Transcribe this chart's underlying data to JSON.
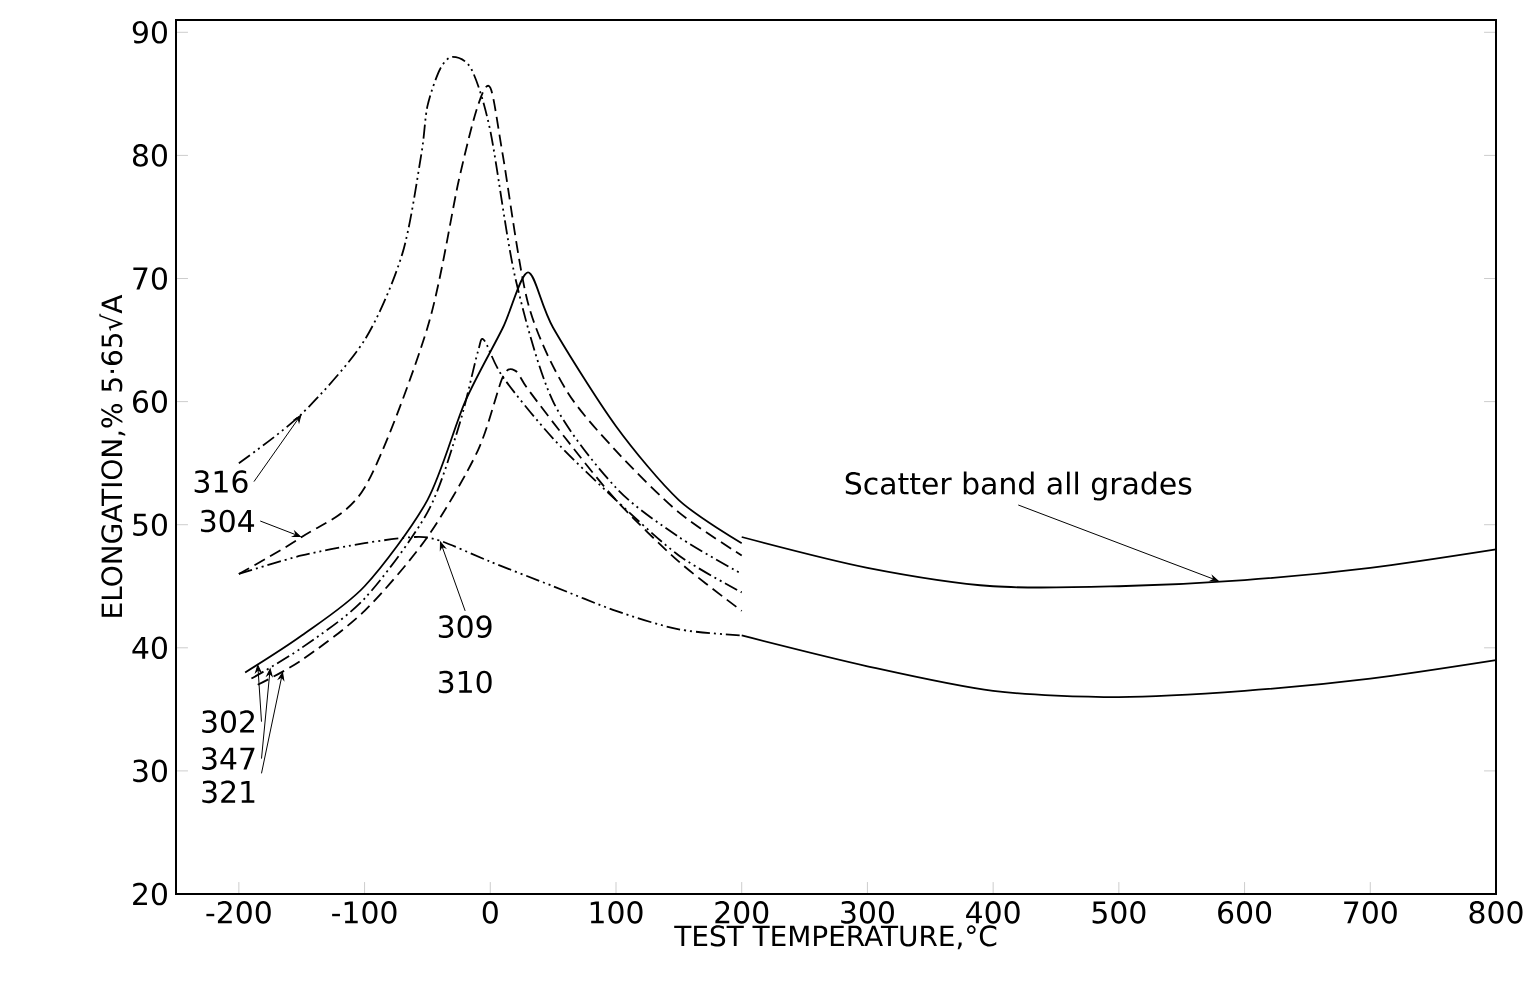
{
  "chart_data": {
    "type": "line",
    "xlabel": "TEST   TEMPERATURE,°C",
    "ylabel": "ELONGATION,% 5·65√A",
    "xlim": [
      -250,
      800
    ],
    "ylim": [
      20,
      91
    ],
    "xticks": [
      -200,
      -100,
      0,
      100,
      200,
      300,
      400,
      500,
      600,
      700,
      800
    ],
    "yticks": [
      20,
      30,
      40,
      50,
      60,
      70,
      80,
      90
    ],
    "marker": "none",
    "series": [
      {
        "color": "#000000",
        "line_style": "dotted",
        "x": [
          -200,
          -150,
          -100,
          -70,
          -55,
          -50,
          -40,
          -30,
          -15,
          0,
          20,
          50,
          100,
          150,
          200
        ],
        "values": [
          55,
          59,
          65,
          72,
          80,
          84,
          87,
          88,
          87,
          82,
          70,
          60,
          53,
          49,
          46
        ]
      },
      {
        "color": "#000000",
        "line_style": "dashed",
        "x": [
          -200,
          -150,
          -100,
          -50,
          -25,
          -10,
          0,
          10,
          30,
          60,
          100,
          150,
          200
        ],
        "values": [
          46,
          49,
          53,
          66,
          78,
          84,
          85.5,
          80,
          68,
          61,
          56,
          51,
          47.5
        ]
      },
      {
        "color": "#000000",
        "line_style": "dotted",
        "x": [
          -200,
          -150,
          -100,
          -60,
          -40,
          0,
          50,
          100,
          150,
          200
        ],
        "values": [
          46,
          47.5,
          48.5,
          49,
          48.7,
          47,
          45,
          43,
          41.5,
          41
        ]
      },
      {
        "color": "#000000",
        "line_style": "solid",
        "x": [
          -195,
          -150,
          -100,
          -50,
          -20,
          10,
          30,
          50,
          100,
          150,
          200
        ],
        "values": [
          38,
          41,
          45,
          52,
          60,
          66,
          70.5,
          66,
          58,
          52,
          48.5
        ]
      },
      {
        "color": "#000000",
        "line_style": "dotted",
        "x": [
          -190,
          -150,
          -100,
          -50,
          -25,
          -10,
          -5,
          10,
          50,
          100,
          150,
          200
        ],
        "values": [
          37.5,
          40,
          44,
          51,
          58,
          64,
          65,
          62,
          57,
          52,
          47.5,
          44.5
        ]
      },
      {
        "color": "#000000",
        "line_style": "dashed",
        "x": [
          -185,
          -150,
          -100,
          -50,
          -10,
          10,
          20,
          30,
          60,
          100,
          150,
          200
        ],
        "values": [
          37,
          39,
          43,
          49,
          56,
          62,
          62.5,
          61,
          57,
          52,
          47,
          43
        ]
      },
      {
        "type": "line",
        "color": "#000000",
        "line_style": "solid",
        "x": [
          200,
          300,
          400,
          500,
          600,
          700,
          800
        ],
        "values": [
          49,
          46.5,
          45,
          45,
          45.5,
          46.5,
          48
        ]
      },
      {
        "type": "line",
        "color": "#000000",
        "line_style": "solid",
        "x": [
          200,
          300,
          400,
          500,
          600,
          700,
          800
        ],
        "values": [
          41,
          38.5,
          36.5,
          36,
          36.5,
          37.5,
          39
        ]
      }
    ],
    "annotations": [
      {
        "text": "316",
        "x": -150,
        "y": 59
      },
      {
        "text": "304",
        "x": -150,
        "y": 49
      },
      {
        "text": "309",
        "x": -40,
        "y": 48.7
      },
      "310",
      {
        "text": "302",
        "x": -185,
        "y": 38.7
      },
      {
        "text": "347",
        "x": -175,
        "y": 38.4
      },
      "321",
      {
        "text": "Scatter band all grades",
        "x": 580,
        "y": 45.4
      }
    ]
  }
}
